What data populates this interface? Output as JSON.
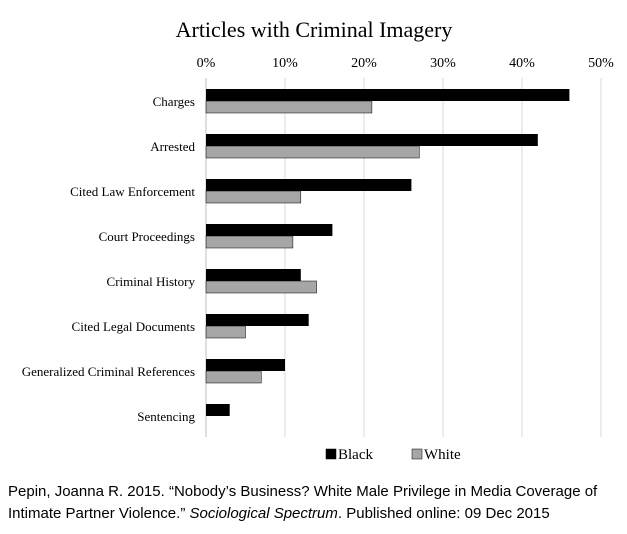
{
  "chart_data": {
    "type": "bar",
    "orientation": "horizontal",
    "title": "Articles with Criminal Imagery",
    "xlabel": "",
    "ylabel": "",
    "xlim": [
      0,
      50
    ],
    "ticks": [
      "0%",
      "10%",
      "20%",
      "30%",
      "40%",
      "50%"
    ],
    "tick_values": [
      0,
      10,
      20,
      30,
      40,
      50
    ],
    "axis_position": "top",
    "grid": true,
    "legend": "bottom",
    "categories": [
      "Charges",
      "Arrested",
      "Cited Law Enforcement",
      "Court Proceedings",
      "Criminal History",
      "Cited Legal Documents",
      "Generalized Criminal References",
      "Sentencing"
    ],
    "series": [
      {
        "name": "Black",
        "color": "#000000",
        "values": [
          46,
          42,
          26,
          16,
          12,
          13,
          10,
          3
        ]
      },
      {
        "name": "White",
        "color": "#a6a6a6",
        "values": [
          21,
          27,
          12,
          11,
          14,
          5,
          7,
          0
        ]
      }
    ]
  },
  "citation": {
    "part1": "Pepin, Joanna R. 2015. “Nobody’s Business? White Male Privilege in Media Coverage of Intimate Partner Violence.” ",
    "journal": "Sociological Spectrum",
    "part2": ". Published online: 09 Dec 2015"
  }
}
